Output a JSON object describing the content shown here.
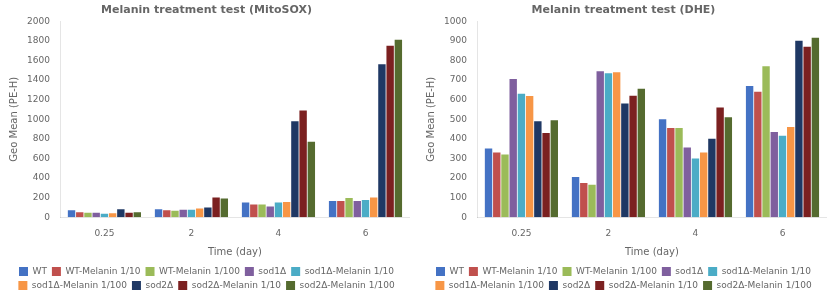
{
  "chart_data": [
    {
      "type": "bar",
      "title": "Melanin treatment test (MitoSOX)",
      "xlabel": "Time (day)",
      "ylabel": "Geo Mean (PE-H)",
      "categories": [
        "0.25",
        "2",
        "4",
        "6"
      ],
      "ylim": [
        0,
        2000
      ],
      "yticks": [
        0,
        200,
        400,
        600,
        800,
        1000,
        1200,
        1400,
        1600,
        1800,
        2000
      ],
      "grid": false,
      "legend": "bottom",
      "series": [
        {
          "name": "WT",
          "color": "#4472c4",
          "values": [
            70,
            80,
            150,
            165
          ]
        },
        {
          "name": "WT-Melanin 1/10",
          "color": "#c0504d",
          "values": [
            50,
            70,
            130,
            165
          ]
        },
        {
          "name": "WT-Melanin 1/100",
          "color": "#9bbb59",
          "values": [
            45,
            65,
            130,
            195
          ]
        },
        {
          "name": "sod1Δ",
          "color": "#7f5f9e",
          "values": [
            45,
            75,
            110,
            165
          ]
        },
        {
          "name": "sod1Δ-Melanin 1/10",
          "color": "#4bacc6",
          "values": [
            35,
            75,
            150,
            175
          ]
        },
        {
          "name": "sod1Δ-Melanin 1/100",
          "color": "#f79646",
          "values": [
            40,
            90,
            155,
            200
          ]
        },
        {
          "name": "sod2Δ",
          "color": "#1f3864",
          "values": [
            80,
            100,
            980,
            1560
          ]
        },
        {
          "name": "sod2Δ-Melanin 1/10",
          "color": "#7b2020",
          "values": [
            45,
            200,
            1090,
            1750
          ]
        },
        {
          "name": "sod2Δ-Melanin 1/100",
          "color": "#556b2f",
          "values": [
            50,
            190,
            770,
            1810
          ]
        }
      ]
    },
    {
      "type": "bar",
      "title": "Melanin treatment test (DHE)",
      "xlabel": "Time (day)",
      "ylabel": "Geo Mean (PE-H)",
      "categories": [
        "0.25",
        "2",
        "4",
        "6"
      ],
      "ylim": [
        0,
        1000
      ],
      "yticks": [
        0,
        100,
        200,
        300,
        400,
        500,
        600,
        700,
        800,
        900,
        1000
      ],
      "grid": false,
      "legend": "bottom",
      "series": [
        {
          "name": "WT",
          "color": "#4472c4",
          "values": [
            350,
            205,
            500,
            670
          ]
        },
        {
          "name": "WT-Melanin 1/10",
          "color": "#c0504d",
          "values": [
            330,
            175,
            455,
            640
          ]
        },
        {
          "name": "WT-Melanin 1/100",
          "color": "#9bbb59",
          "values": [
            320,
            165,
            455,
            770
          ]
        },
        {
          "name": "sod1Δ",
          "color": "#7f5f9e",
          "values": [
            705,
            745,
            355,
            435
          ]
        },
        {
          "name": "sod1Δ-Melanin 1/10",
          "color": "#4bacc6",
          "values": [
            630,
            735,
            300,
            415
          ]
        },
        {
          "name": "sod1Δ-Melanin 1/100",
          "color": "#f79646",
          "values": [
            618,
            740,
            330,
            460
          ]
        },
        {
          "name": "sod2Δ",
          "color": "#1f3864",
          "values": [
            490,
            580,
            400,
            900
          ]
        },
        {
          "name": "sod2Δ-Melanin 1/10",
          "color": "#7b2020",
          "values": [
            430,
            620,
            560,
            870
          ]
        },
        {
          "name": "sod2Δ-Melanin 1/100",
          "color": "#556b2f",
          "values": [
            495,
            655,
            510,
            915
          ]
        }
      ]
    }
  ]
}
